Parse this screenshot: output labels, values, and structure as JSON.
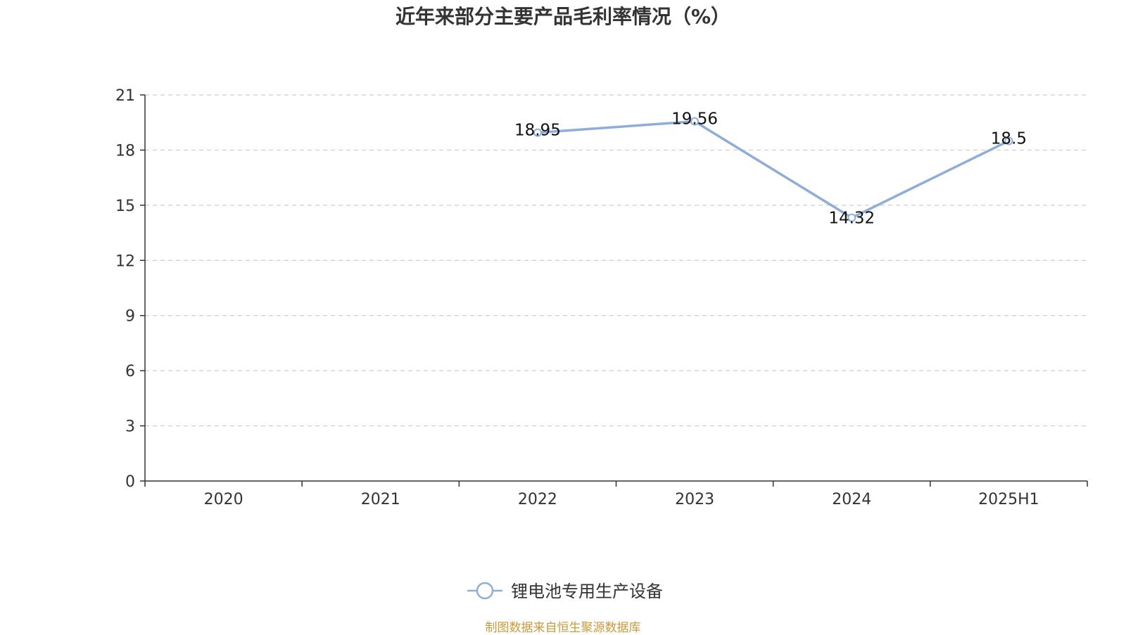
{
  "title": "近年来部分主要产品毛利率情况（%）",
  "source": "制图数据来自恒生聚源数据库",
  "colors": {
    "series": "#8eadd8",
    "axis": "#333333",
    "grid": "#cccccc",
    "title": "#333333",
    "source": "#c99a3a"
  },
  "chart_data": {
    "type": "line",
    "title": "近年来部分主要产品毛利率情况（%）",
    "categories": [
      "2020",
      "2021",
      "2022",
      "2023",
      "2024",
      "2025H1"
    ],
    "series": [
      {
        "name": "锂电池专用生产设备",
        "values": [
          null,
          null,
          18.95,
          19.56,
          14.32,
          18.5
        ],
        "labels": [
          "",
          "",
          "18.95",
          "19.56",
          "14.32",
          "18.5"
        ]
      }
    ],
    "yticks": [
      "0",
      "3",
      "6",
      "9",
      "12",
      "15",
      "18",
      "21"
    ],
    "ylim": [
      0,
      21
    ],
    "grid": "horizontal dashed",
    "legend": "bottom-center",
    "xlabel": "",
    "ylabel": ""
  }
}
